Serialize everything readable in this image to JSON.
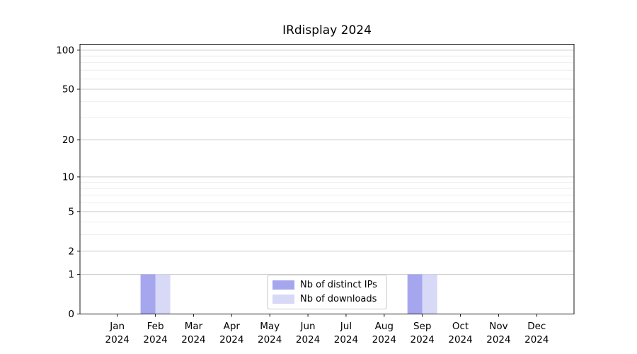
{
  "chart_data": {
    "type": "bar",
    "title": "IRdisplay 2024",
    "categories": [
      "Jan 2024",
      "Feb 2024",
      "Mar 2024",
      "Apr 2024",
      "May 2024",
      "Jun 2024",
      "Jul 2024",
      "Aug 2024",
      "Sep 2024",
      "Oct 2024",
      "Nov 2024",
      "Dec 2024"
    ],
    "series": [
      {
        "name": "Nb of distinct IPs",
        "color": "#a6a6ee",
        "values": [
          0,
          1,
          0,
          0,
          0,
          0,
          0,
          0,
          1,
          0,
          0,
          0
        ]
      },
      {
        "name": "Nb of downloads",
        "color": "#d8d8f7",
        "values": [
          0,
          1,
          0,
          0,
          0,
          0,
          0,
          0,
          1,
          0,
          0,
          0
        ]
      }
    ],
    "xlabel": "",
    "ylabel": "",
    "y_scale": "log1p",
    "ylim": [
      0,
      111
    ],
    "y_ticks": [
      0,
      1,
      2,
      5,
      10,
      20,
      50,
      100
    ],
    "y_minor_gridlines": [
      3,
      4,
      6,
      7,
      8,
      9,
      30,
      40,
      60,
      70,
      80,
      90
    ],
    "grid": "on",
    "legend_position": "lower center",
    "colors": {
      "major_grid": "#cccccc",
      "minor_grid": "#ededed",
      "spine": "#1a1a1a",
      "background": "#ffffff"
    }
  }
}
